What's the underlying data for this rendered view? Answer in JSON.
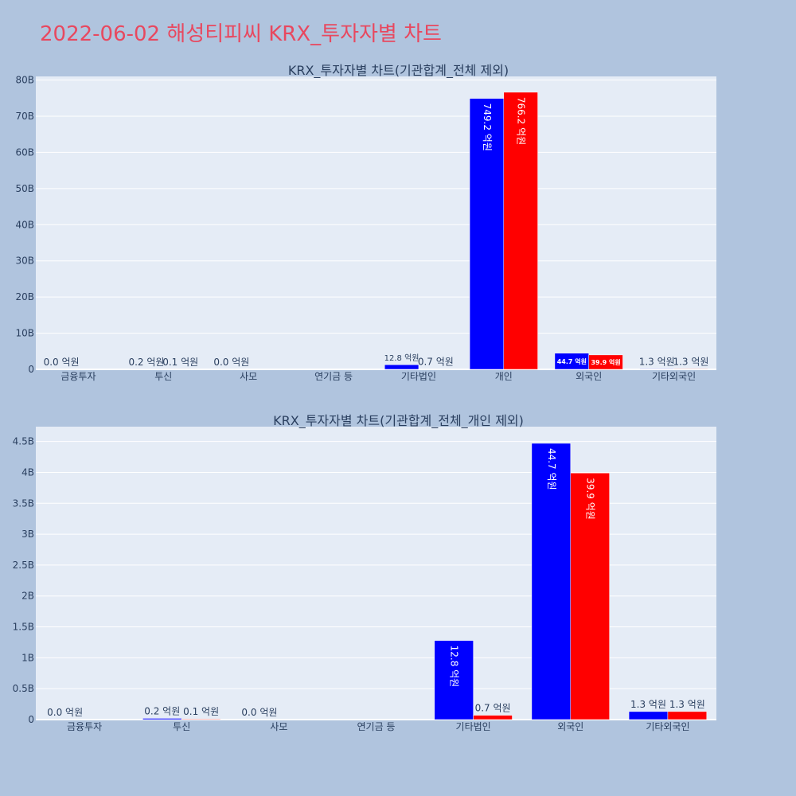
{
  "page": {
    "title": "2022-06-02 해성티피씨 KRX_투자자별 차트"
  },
  "colors": {
    "background": "#b0c4de",
    "plot_bg": "#e5ecf6",
    "buy": "#0000ff",
    "sell": "#ff0000",
    "text": "#2a3f5f",
    "title": "#e8485f"
  },
  "chart_data": [
    {
      "type": "bar",
      "title": "KRX_투자자별 차트(기관합계_전체 제외)",
      "categories": [
        "금융투자",
        "투신",
        "사모",
        "연기금 등",
        "기타법인",
        "개인",
        "외국인",
        "기타외국인"
      ],
      "series": [
        {
          "color": "#0000ff",
          "values": [
            0.0,
            0.02,
            0.0,
            0.0,
            1.28,
            74.92,
            4.47,
            0.13
          ],
          "labels": [
            "0.0 억원",
            "0.2 억원",
            "0.0 억원",
            "",
            "12.8 억원",
            "749.2 억원",
            "44.7 억원",
            "1.3 억원"
          ]
        },
        {
          "color": "#ff0000",
          "values": [
            0.0,
            0.01,
            0.0,
            0.0,
            0.07,
            76.62,
            3.99,
            0.13
          ],
          "labels": [
            "",
            "0.1 억원",
            "",
            "",
            "0.7 억원",
            "766.2 억원",
            "39.9 억원",
            "1.3 억원"
          ]
        }
      ],
      "yticks": [
        "0",
        "10B",
        "20B",
        "30B",
        "40B",
        "50B",
        "60B",
        "70B",
        "80B"
      ],
      "ylim": [
        0,
        81
      ]
    },
    {
      "type": "bar",
      "title": "KRX_투자자별 차트(기관합계_전체_개인 제외)",
      "categories": [
        "금융투자",
        "투신",
        "사모",
        "연기금 등",
        "기타법인",
        "외국인",
        "기타외국인"
      ],
      "series": [
        {
          "color": "#0000ff",
          "values": [
            0.0,
            0.02,
            0.0,
            0.0,
            1.28,
            4.47,
            0.13
          ],
          "labels": [
            "0.0 억원",
            "0.2 억원",
            "0.0 억원",
            "",
            "12.8 억원",
            "44.7 억원",
            "1.3 억원"
          ]
        },
        {
          "color": "#ff0000",
          "values": [
            0.0,
            0.01,
            0.0,
            0.0,
            0.07,
            3.99,
            0.13
          ],
          "labels": [
            "",
            "0.1 억원",
            "",
            "",
            "0.7 억원",
            "39.9 억원",
            "1.3 억원"
          ]
        }
      ],
      "yticks": [
        "0",
        "0.5B",
        "1B",
        "1.5B",
        "2B",
        "2.5B",
        "3B",
        "3.5B",
        "4B",
        "4.5B"
      ],
      "ylim": [
        0,
        4.74
      ]
    }
  ]
}
